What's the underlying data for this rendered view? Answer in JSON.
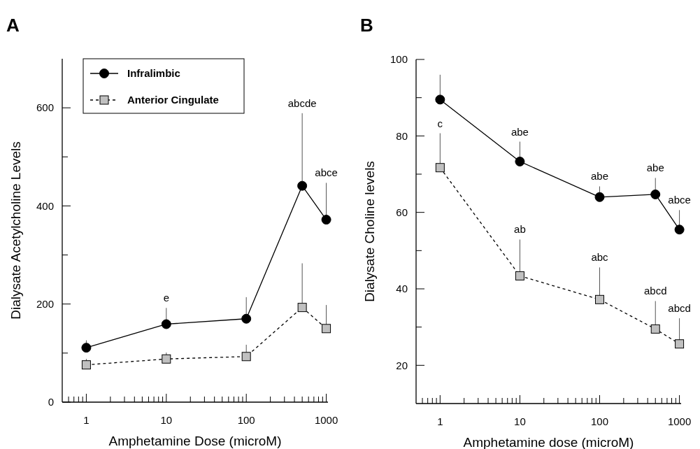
{
  "chart_data": [
    {
      "type": "line",
      "title": "A",
      "xlabel": "Amphetamine Dose (microM)",
      "ylabel": "Dialysate Acetylcholine Levels",
      "log": "x",
      "x": [
        1,
        10,
        100,
        500,
        1000
      ],
      "xlim": [
        0.5,
        1050
      ],
      "xticks": [
        {
          "value": 0.6,
          "label": null
        },
        {
          "value": 0.7,
          "label": null
        },
        {
          "value": 0.8,
          "label": null
        },
        {
          "value": 0.9,
          "label": null
        },
        1,
        {
          "value": 2,
          "label": null
        },
        {
          "value": 3,
          "label": null
        },
        {
          "value": 4,
          "label": null
        },
        {
          "value": 5,
          "label": null
        },
        {
          "value": 6,
          "label": null
        },
        {
          "value": 7,
          "label": null
        },
        {
          "value": 8,
          "label": null
        },
        {
          "value": 9,
          "label": null
        },
        10,
        {
          "value": 20,
          "label": null
        },
        {
          "value": 30,
          "label": null
        },
        {
          "value": 40,
          "label": null
        },
        {
          "value": 50,
          "label": null
        },
        {
          "value": 60,
          "label": null
        },
        {
          "value": 70,
          "label": null
        },
        {
          "value": 80,
          "label": null
        },
        {
          "value": 90,
          "label": null
        },
        100,
        {
          "value": 200,
          "label": null
        },
        {
          "value": 300,
          "label": null
        },
        {
          "value": 400,
          "label": null
        },
        {
          "value": 500,
          "label": null
        },
        {
          "value": 600,
          "label": null
        },
        {
          "value": 700,
          "label": null
        },
        {
          "value": 800,
          "label": null
        },
        {
          "value": 900,
          "label": null
        },
        1000
      ],
      "ylim": [
        0,
        700
      ],
      "yticks": [
        0,
        {
          "value": 100,
          "label": null
        },
        200,
        {
          "value": 300,
          "label": null
        },
        400,
        {
          "value": 500,
          "label": null
        },
        600
      ],
      "legend": "top left",
      "grid": false,
      "series": [
        {
          "name": "Infralimbic",
          "color": "#000000",
          "marker": "circle",
          "line_style": "solid",
          "values": [
            111,
            159,
            170,
            441,
            372
          ],
          "errors": [
            [
              111,
              126
            ],
            [
              159,
              192
            ],
            [
              170,
              214
            ],
            [
              441,
              589
            ],
            [
              372,
              447
            ]
          ]
        },
        {
          "name": "Anterior Cingulate",
          "color": "#c0c0c0",
          "marker": "square",
          "line_style": "dashed",
          "values": [
            76,
            88,
            93,
            193,
            150
          ],
          "errors": [
            [
              76,
              88
            ],
            [
              88,
              101
            ],
            [
              93,
              117
            ],
            [
              193,
              283
            ],
            [
              150,
              198
            ]
          ]
        }
      ],
      "annotations": [
        {
          "text": "e",
          "x": 10,
          "y": 192
        },
        {
          "text": "abcde",
          "x": 500,
          "y": 589
        },
        {
          "text": "abce",
          "x": 1000,
          "y": 447
        }
      ]
    },
    {
      "type": "line",
      "title": "B",
      "xlabel": "Amphetamine dose (microM)",
      "ylabel": "Dialysate Choline levels",
      "log": "x",
      "x": [
        1,
        10,
        100,
        500,
        1000
      ],
      "xlim": [
        0.5,
        1050
      ],
      "xticks": [
        {
          "value": 0.6,
          "label": null
        },
        {
          "value": 0.7,
          "label": null
        },
        {
          "value": 0.8,
          "label": null
        },
        {
          "value": 0.9,
          "label": null
        },
        1,
        {
          "value": 2,
          "label": null
        },
        {
          "value": 3,
          "label": null
        },
        {
          "value": 4,
          "label": null
        },
        {
          "value": 5,
          "label": null
        },
        {
          "value": 6,
          "label": null
        },
        {
          "value": 7,
          "label": null
        },
        {
          "value": 8,
          "label": null
        },
        {
          "value": 9,
          "label": null
        },
        10,
        {
          "value": 20,
          "label": null
        },
        {
          "value": 30,
          "label": null
        },
        {
          "value": 40,
          "label": null
        },
        {
          "value": 50,
          "label": null
        },
        {
          "value": 60,
          "label": null
        },
        {
          "value": 70,
          "label": null
        },
        {
          "value": 80,
          "label": null
        },
        {
          "value": 90,
          "label": null
        },
        100,
        {
          "value": 200,
          "label": null
        },
        {
          "value": 300,
          "label": null
        },
        {
          "value": 400,
          "label": null
        },
        {
          "value": 500,
          "label": null
        },
        {
          "value": 600,
          "label": null
        },
        {
          "value": 700,
          "label": null
        },
        {
          "value": 800,
          "label": null
        },
        {
          "value": 900,
          "label": null
        },
        1000
      ],
      "ylim": [
        10,
        100
      ],
      "yticks": [
        20,
        {
          "value": 30,
          "label": null
        },
        40,
        {
          "value": 50,
          "label": null
        },
        60,
        {
          "value": 70,
          "label": null
        },
        80,
        {
          "value": 90,
          "label": null
        },
        100
      ],
      "legend": false,
      "grid": false,
      "series": [
        {
          "color": "#000000",
          "marker": "circle",
          "line_style": "solid",
          "values": [
            89.5,
            73.3,
            64,
            64.7,
            55.5
          ],
          "errors": [
            [
              89.5,
              96
            ],
            [
              73.3,
              78.5
            ],
            [
              64,
              66.8
            ],
            [
              64.7,
              69
            ],
            [
              55.5,
              60.6
            ]
          ]
        },
        {
          "color": "#c0c0c0",
          "marker": "square",
          "line_style": "dashed",
          "values": [
            71.7,
            43.4,
            37.2,
            29.5,
            25.6
          ],
          "errors": [
            [
              71.7,
              80.7
            ],
            [
              43.4,
              52.9
            ],
            [
              37.2,
              45.6
            ],
            [
              29.5,
              36.8
            ],
            [
              25.6,
              32.3
            ]
          ]
        }
      ],
      "annotations": [
        {
          "text": "c",
          "x": 1,
          "y": 80.7
        },
        {
          "text": "abe",
          "x": 10,
          "y": 78.5
        },
        {
          "text": "abe",
          "x": 100,
          "y": 66.8
        },
        {
          "text": "abe",
          "x": 500,
          "y": 69
        },
        {
          "text": "abce",
          "x": 1000,
          "y": 60.6
        },
        {
          "text": "ab",
          "x": 10,
          "y": 52.9
        },
        {
          "text": "abc",
          "x": 100,
          "y": 45.6
        },
        {
          "text": "abcd",
          "x": 500,
          "y": 36.8
        },
        {
          "text": "abcd",
          "x": 1000,
          "y": 32.3
        }
      ]
    }
  ]
}
